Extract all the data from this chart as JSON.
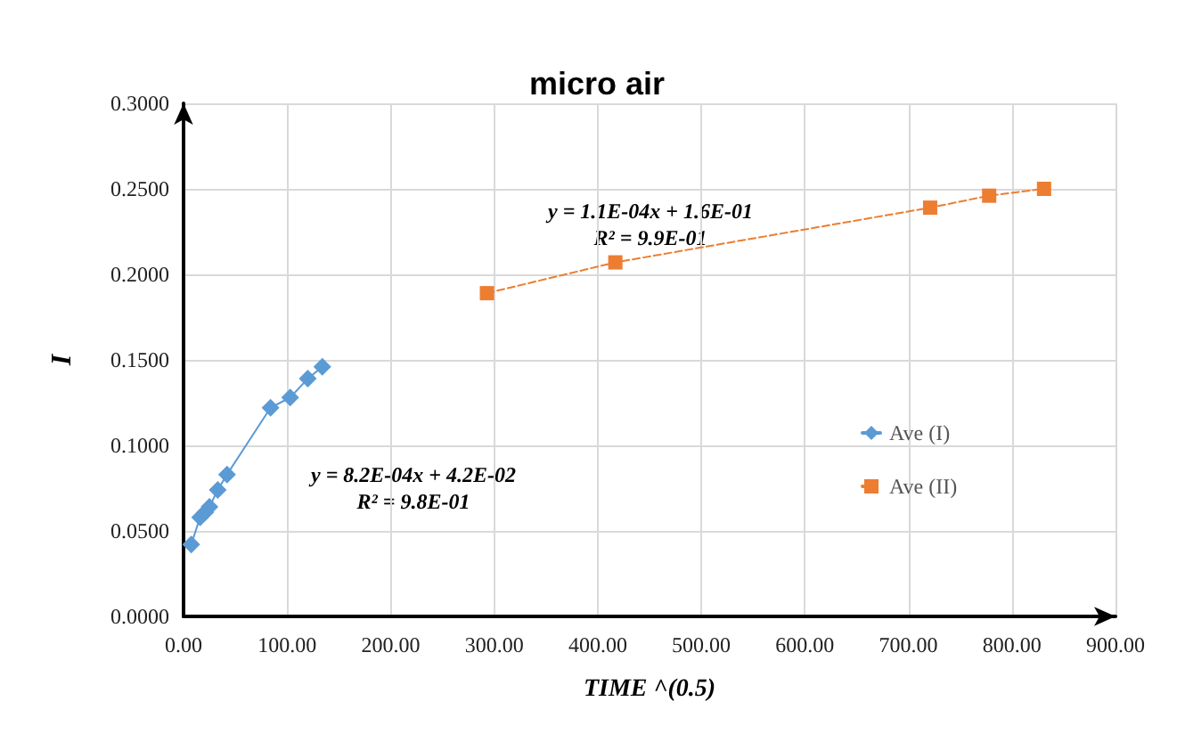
{
  "chart_data": {
    "type": "line",
    "title": "micro air",
    "xlabel": "TIME ^(0.5)",
    "ylabel": "I",
    "series": [
      {
        "name": "Ave (I)",
        "color": "#5b9bd5",
        "marker": "diamond",
        "line_style": "solid",
        "x": [
          7.4,
          16,
          21,
          25,
          33,
          42,
          84,
          103,
          120,
          134
        ],
        "values": [
          0.042,
          0.058,
          0.061,
          0.064,
          0.074,
          0.083,
          0.122,
          0.128,
          0.139,
          0.146
        ]
      },
      {
        "name": "Ave (II)",
        "color": "#ed7d31",
        "marker": "square",
        "line_style": "dashed",
        "x": [
          293,
          417,
          721,
          778,
          831
        ],
        "values": [
          0.189,
          0.207,
          0.239,
          0.246,
          0.25
        ]
      }
    ],
    "xlim": [
      0,
      900
    ],
    "xticks": [
      {
        "value": 0,
        "label": "0.00"
      },
      {
        "value": 100,
        "label": "100.00"
      },
      {
        "value": 200,
        "label": "200.00"
      },
      {
        "value": 300,
        "label": "300.00"
      },
      {
        "value": 400,
        "label": "400.00"
      },
      {
        "value": 500,
        "label": "500.00"
      },
      {
        "value": 600,
        "label": "600.00"
      },
      {
        "value": 700,
        "label": "700.00"
      },
      {
        "value": 800,
        "label": "800.00"
      },
      {
        "value": 900,
        "label": "900.00"
      }
    ],
    "ylim": [
      0,
      0.3
    ],
    "yticks": [
      {
        "value": 0,
        "label": "0.0000"
      },
      {
        "value": 0.05,
        "label": "0.0500"
      },
      {
        "value": 0.1,
        "label": "0.1000"
      },
      {
        "value": 0.15,
        "label": "0.1500"
      },
      {
        "value": 0.2,
        "label": "0.2000"
      },
      {
        "value": 0.25,
        "label": "0.2500"
      },
      {
        "value": 0.3,
        "label": "0.3000"
      }
    ],
    "annotations": [
      "y = 8.2E-04x + 4.2E-02\nR² = 9.8E-01",
      "y = 1.1E-04x + 1.6E-01\nR² = 9.9E-01"
    ],
    "grid": true,
    "legend": "right"
  }
}
